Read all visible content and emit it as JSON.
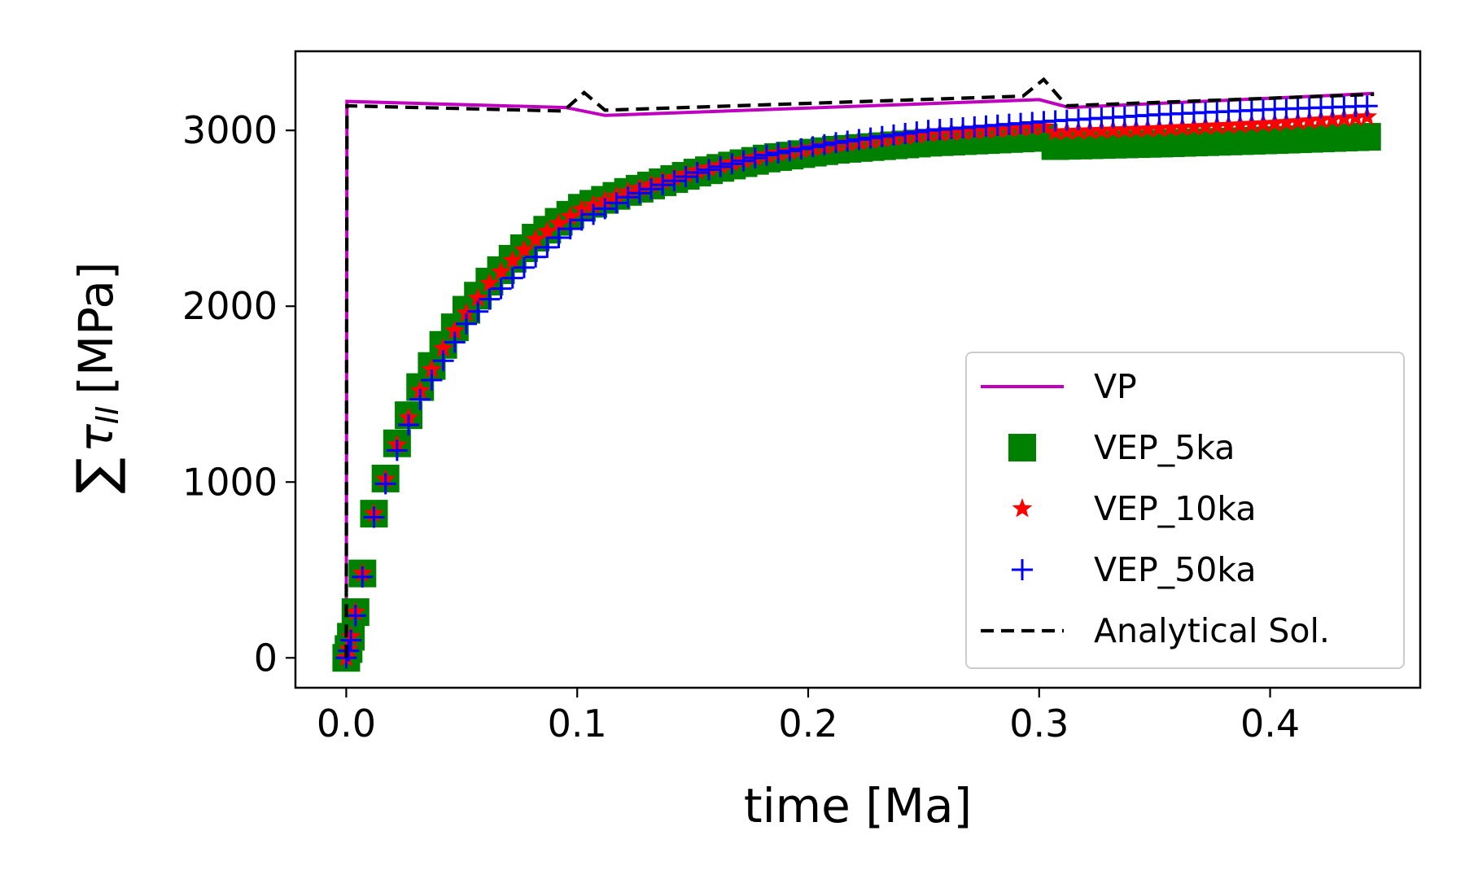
{
  "chart_data": {
    "type": "line",
    "xlabel": "time [Ma]",
    "ylabel": "∑τII [MPa]",
    "ylabel_parts": {
      "sum": "∑",
      "tau": "τ",
      "sub": "II",
      "unit": "[MPa]"
    },
    "xlim": [
      -0.022,
      0.465
    ],
    "ylim": [
      -170,
      3450
    ],
    "xticks": [
      0.0,
      0.1,
      0.2,
      0.3,
      0.4
    ],
    "xtick_labels": [
      "0.0",
      "0.1",
      "0.2",
      "0.3",
      "0.4"
    ],
    "yticks": [
      0,
      1000,
      2000,
      3000
    ],
    "ytick_labels": [
      "0",
      "1000",
      "2000",
      "3000"
    ],
    "legend_position": "lower right",
    "grid": false,
    "series": [
      {
        "name": "VP",
        "style": "line",
        "color": "#bf00bf",
        "x": [
          0.0,
          0.0003,
          0.095,
          0.112,
          0.3,
          0.313,
          0.445
        ],
        "y": [
          0,
          3165,
          3130,
          3085,
          3175,
          3130,
          3210
        ]
      },
      {
        "name": "VEP_5ka",
        "style": "marker",
        "marker": "square",
        "color": "#008000",
        "x_start": 0.0,
        "x_step": 0.005,
        "x_end": 0.445,
        "anchors_x": [
          0.0,
          0.001,
          0.002,
          0.004,
          0.007,
          0.012,
          0.022,
          0.032,
          0.042,
          0.052,
          0.062,
          0.072,
          0.082,
          0.092,
          0.102,
          0.122,
          0.152,
          0.182,
          0.212,
          0.252,
          0.302,
          0.305,
          0.352,
          0.402,
          0.445
        ],
        "anchors_y": [
          0,
          50,
          120,
          260,
          480,
          820,
          1220,
          1540,
          1780,
          1980,
          2140,
          2270,
          2390,
          2480,
          2560,
          2650,
          2760,
          2840,
          2890,
          2930,
          2960,
          2910,
          2925,
          2945,
          2965
        ]
      },
      {
        "name": "VEP_10ka",
        "style": "marker",
        "marker": "star",
        "color": "#ff0000",
        "x_start": 0.0,
        "x_step": 0.005,
        "x_end": 0.445,
        "anchors_x": [
          0.0,
          0.001,
          0.002,
          0.004,
          0.007,
          0.012,
          0.022,
          0.032,
          0.042,
          0.052,
          0.062,
          0.072,
          0.082,
          0.092,
          0.102,
          0.122,
          0.152,
          0.182,
          0.212,
          0.252,
          0.302,
          0.305,
          0.352,
          0.402,
          0.445
        ],
        "anchors_y": [
          0,
          50,
          120,
          260,
          480,
          820,
          1210,
          1520,
          1760,
          1960,
          2130,
          2260,
          2380,
          2470,
          2550,
          2650,
          2770,
          2860,
          2920,
          2980,
          3020,
          2990,
          3010,
          3040,
          3080
        ]
      },
      {
        "name": "VEP_50ka",
        "style": "marker",
        "marker": "plus",
        "color": "#0000ff",
        "x_start": 0.0,
        "x_step": 0.005,
        "x_end": 0.445,
        "anchors_x": [
          0.0,
          0.001,
          0.002,
          0.004,
          0.007,
          0.012,
          0.022,
          0.032,
          0.042,
          0.052,
          0.062,
          0.072,
          0.082,
          0.092,
          0.102,
          0.122,
          0.152,
          0.182,
          0.212,
          0.252,
          0.302,
          0.352,
          0.402,
          0.445
        ],
        "anchors_y": [
          0,
          40,
          100,
          240,
          460,
          800,
          1180,
          1470,
          1690,
          1900,
          2040,
          2160,
          2280,
          2390,
          2490,
          2620,
          2760,
          2860,
          2930,
          3000,
          3050,
          3090,
          3120,
          3140
        ]
      },
      {
        "name": "Analytical Sol.",
        "style": "dashed",
        "color": "#000000",
        "x": [
          0.0,
          0.0003,
          0.094,
          0.103,
          0.112,
          0.293,
          0.302,
          0.312,
          0.445
        ],
        "y": [
          0,
          3140,
          3110,
          3215,
          3115,
          3195,
          3290,
          3140,
          3205
        ]
      }
    ]
  }
}
